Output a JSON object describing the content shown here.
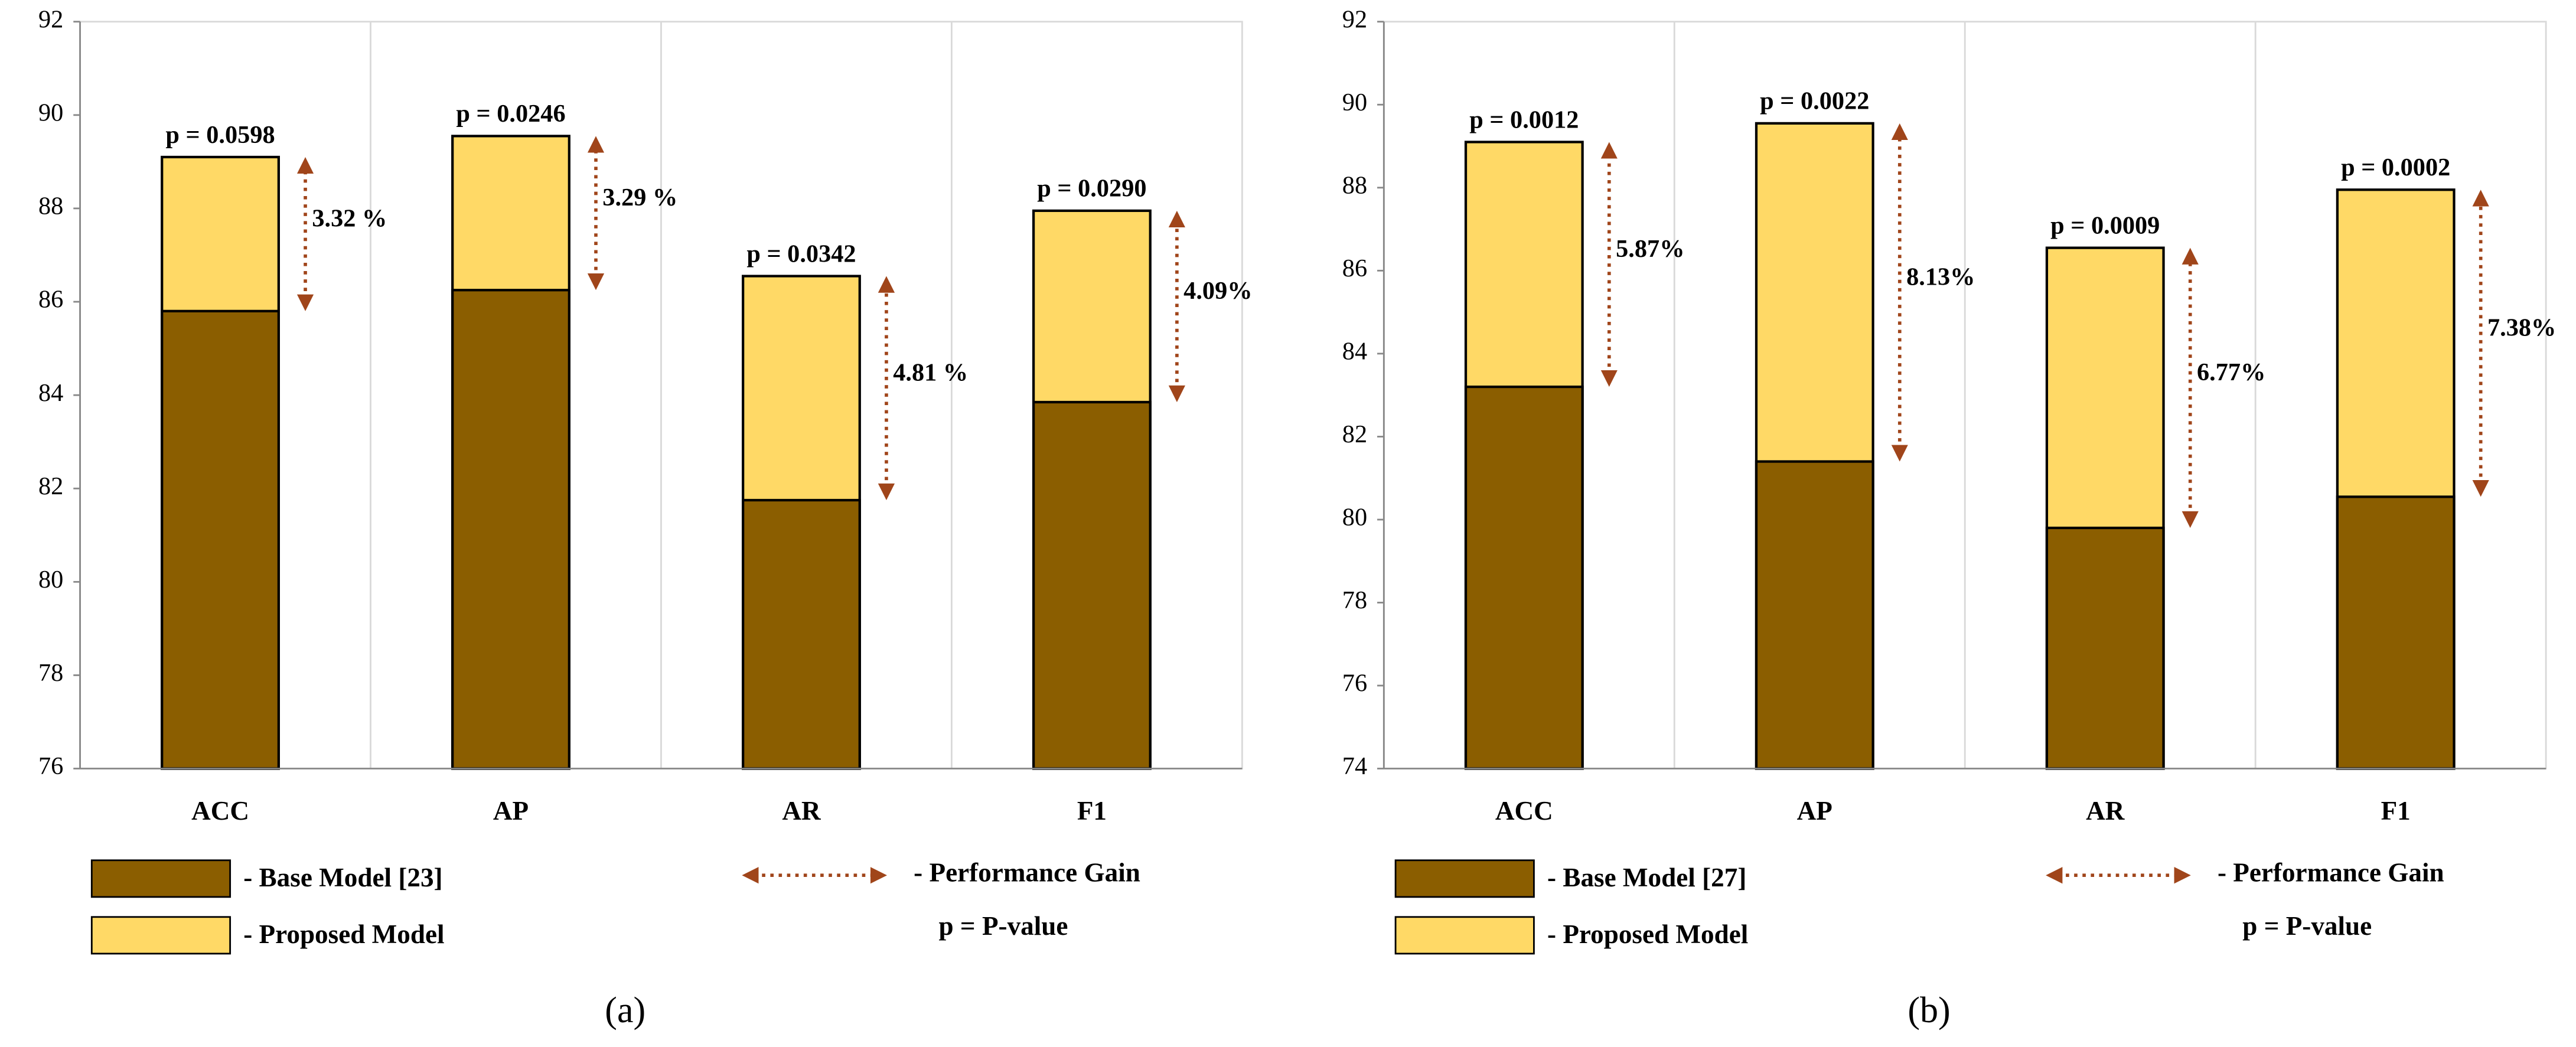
{
  "chart_data": [
    {
      "type": "bar",
      "categories": [
        "ACC",
        "AP",
        "AR",
        "F1"
      ],
      "series": [
        {
          "name": "- Base Model [23]",
          "color": "#8b5e00",
          "values": [
            85.8,
            86.25,
            81.75,
            83.85
          ]
        },
        {
          "name": "- Proposed Model",
          "color": "#ffd966",
          "values": [
            89.1,
            89.55,
            86.55,
            87.95
          ]
        }
      ],
      "ylim": [
        76,
        92
      ],
      "yticks": [
        76,
        78,
        80,
        82,
        84,
        86,
        88,
        90,
        92
      ],
      "p_labels": [
        "p = 0.0598",
        "p = 0.0246",
        "p = 0.0342",
        "p = 0.0290"
      ],
      "gain_labels": [
        "3.32 %",
        "3.29 %",
        "4.81 %",
        "4.09%"
      ],
      "gain_legend": "- Performance Gain",
      "p_legend": "p = P-value",
      "caption": "(a)",
      "grid": true
    },
    {
      "type": "bar",
      "categories": [
        "ACC",
        "AP",
        "AR",
        "F1"
      ],
      "series": [
        {
          "name": "- Base Model [27]",
          "color": "#8b5e00",
          "values": [
            83.2,
            81.4,
            79.8,
            80.55
          ]
        },
        {
          "name": "- Proposed Model",
          "color": "#ffd966",
          "values": [
            89.1,
            89.55,
            86.55,
            87.95
          ]
        }
      ],
      "ylim": [
        74,
        92
      ],
      "yticks": [
        74,
        76,
        78,
        80,
        82,
        84,
        86,
        88,
        90,
        92
      ],
      "p_labels": [
        "p = 0.0012",
        "p = 0.0022",
        "p = 0.0009",
        "p = 0.0002"
      ],
      "gain_labels": [
        "5.87%",
        "8.13%",
        "6.77%",
        "7.38%"
      ],
      "gain_legend": "- Performance Gain",
      "p_legend": "p = P-value",
      "caption": "(b)",
      "grid": true
    }
  ]
}
